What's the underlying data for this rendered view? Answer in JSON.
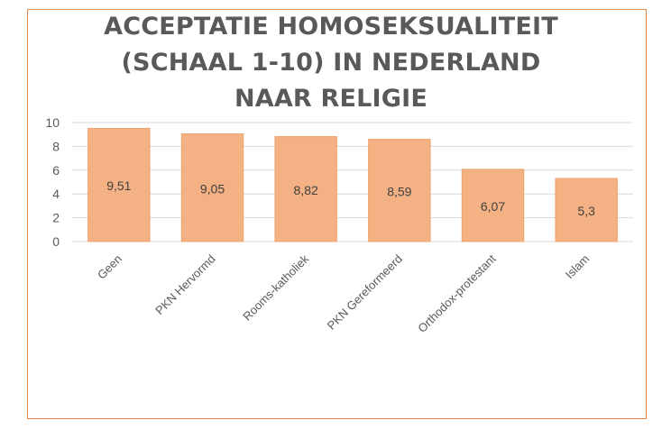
{
  "chart_data": {
    "type": "bar",
    "title_lines": [
      "ACCEPTATIE HOMOSEKSUALITEIT",
      "(SCHAAL 1-10) IN NEDERLAND",
      "NAAR RELIGIE"
    ],
    "categories": [
      "Geen",
      "PKN Hervormd",
      "Rooms-katholiek",
      "PKN Gereformeerd",
      "Orthodox-protestant",
      "Islam"
    ],
    "values": [
      9.51,
      9.05,
      8.82,
      8.59,
      6.07,
      5.3
    ],
    "data_labels": [
      "9,51",
      "9,05",
      "8,82",
      "8,59",
      "6,07",
      "5,3"
    ],
    "yticks": [
      "0",
      "2",
      "4",
      "6",
      "8",
      "10"
    ],
    "ylim": [
      0,
      10
    ],
    "grid": true,
    "legend": "none",
    "bar_color": "#f4b183",
    "bar_outline": "#f0a26a",
    "frame_color": "#e6884a"
  }
}
